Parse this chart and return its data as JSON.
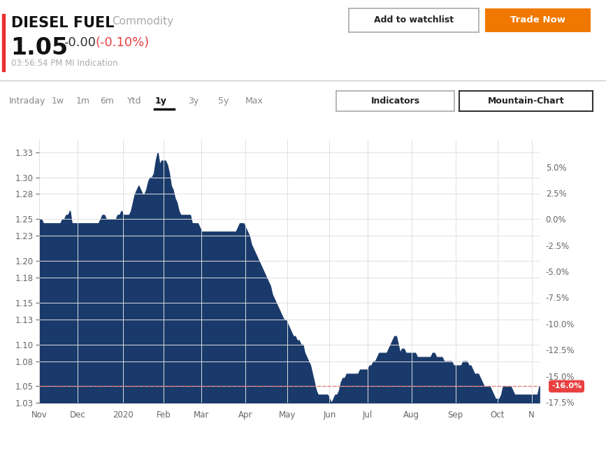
{
  "title": "DIESEL FUEL",
  "subtitle": "Commodity",
  "price": "1.05",
  "change": "-0.00",
  "change_pct": "(-0.10%)",
  "timestamp": "03:56:54 PM MI Indication",
  "bar_color": "#1a3a6b",
  "bg_color": "#ffffff",
  "ref_line_color": "#e87070",
  "ref_line_value": 1.05,
  "ref_line_pct": "-16.0%",
  "ylim_left": [
    1.03,
    1.345
  ],
  "base_price": 1.25,
  "right_pct": [
    0.05,
    0.025,
    0.0,
    -0.025,
    -0.05,
    -0.075,
    -0.1,
    -0.125,
    -0.15,
    -0.175
  ],
  "right_labels": [
    "5.0%",
    "2.5%",
    "0.0%",
    "-2.5%",
    "-5.0%",
    "-7.5%",
    "-10.0%",
    "-12.5%",
    "-15.0%",
    "-17.5%"
  ],
  "x_labels": [
    "Nov",
    "Dec",
    "2020",
    "Feb",
    "Mar",
    "Apr",
    "May",
    "Jun",
    "Jul",
    "Aug",
    "Sep",
    "Oct",
    "N"
  ],
  "x_tick_positions": [
    0,
    20,
    44,
    65,
    85,
    108,
    130,
    152,
    172,
    195,
    218,
    240,
    258
  ],
  "ytick_vals": [
    1.03,
    1.05,
    1.08,
    1.1,
    1.13,
    1.15,
    1.18,
    1.2,
    1.23,
    1.25,
    1.28,
    1.3,
    1.33
  ],
  "tab_labels": [
    "Intraday",
    "1w",
    "1m",
    "6m",
    "Ytd",
    "1y",
    "3y",
    "5y",
    "Max"
  ],
  "tab_x_starts": [
    0.015,
    0.085,
    0.125,
    0.165,
    0.21,
    0.255,
    0.31,
    0.36,
    0.405
  ],
  "active_tab": "1y",
  "grid_color": "#e0e0e0",
  "badge_color": "#e84040",
  "red_bar_color": "#e83030",
  "separator_color": "#cccccc",
  "orange_btn_color": "#f07800",
  "y_values": [
    1.25,
    1.25,
    1.245,
    1.245,
    1.245,
    1.245,
    1.245,
    1.245,
    1.245,
    1.245,
    1.245,
    1.245,
    1.25,
    1.25,
    1.255,
    1.255,
    1.26,
    1.245,
    1.245,
    1.245,
    1.245,
    1.245,
    1.245,
    1.245,
    1.245,
    1.245,
    1.245,
    1.245,
    1.245,
    1.245,
    1.245,
    1.245,
    1.25,
    1.255,
    1.255,
    1.25,
    1.25,
    1.25,
    1.25,
    1.25,
    1.25,
    1.255,
    1.255,
    1.26,
    1.255,
    1.255,
    1.255,
    1.255,
    1.26,
    1.27,
    1.28,
    1.285,
    1.29,
    1.285,
    1.28,
    1.28,
    1.285,
    1.295,
    1.3,
    1.3,
    1.305,
    1.32,
    1.33,
    1.315,
    1.32,
    1.32,
    1.32,
    1.315,
    1.305,
    1.29,
    1.285,
    1.275,
    1.27,
    1.26,
    1.255,
    1.255,
    1.255,
    1.255,
    1.255,
    1.255,
    1.245,
    1.245,
    1.245,
    1.245,
    1.24,
    1.235,
    1.235,
    1.235,
    1.235,
    1.235,
    1.235,
    1.235,
    1.235,
    1.235,
    1.235,
    1.235,
    1.235,
    1.235,
    1.235,
    1.235,
    1.235,
    1.235,
    1.235,
    1.235,
    1.24,
    1.245,
    1.245,
    1.245,
    1.24,
    1.235,
    1.23,
    1.22,
    1.215,
    1.21,
    1.205,
    1.2,
    1.195,
    1.19,
    1.185,
    1.18,
    1.175,
    1.17,
    1.16,
    1.155,
    1.15,
    1.145,
    1.14,
    1.135,
    1.13,
    1.13,
    1.125,
    1.12,
    1.115,
    1.11,
    1.11,
    1.105,
    1.105,
    1.1,
    1.1,
    1.09,
    1.085,
    1.08,
    1.075,
    1.065,
    1.055,
    1.045,
    1.04,
    1.04,
    1.04,
    1.04,
    1.04,
    1.04,
    1.035,
    1.03,
    1.035,
    1.04,
    1.04,
    1.045,
    1.055,
    1.06,
    1.06,
    1.065,
    1.065,
    1.065,
    1.065,
    1.065,
    1.065,
    1.065,
    1.07,
    1.07,
    1.07,
    1.07,
    1.07,
    1.075,
    1.075,
    1.08,
    1.08,
    1.085,
    1.09,
    1.09,
    1.09,
    1.09,
    1.09,
    1.095,
    1.1,
    1.105,
    1.11,
    1.11,
    1.1,
    1.09,
    1.095,
    1.095,
    1.09,
    1.09,
    1.09,
    1.09,
    1.09,
    1.09,
    1.085,
    1.085,
    1.085,
    1.085,
    1.085,
    1.085,
    1.085,
    1.085,
    1.09,
    1.09,
    1.085,
    1.085,
    1.085,
    1.085,
    1.08,
    1.08,
    1.08,
    1.08,
    1.08,
    1.075,
    1.075,
    1.075,
    1.075,
    1.075,
    1.08,
    1.08,
    1.08,
    1.075,
    1.075,
    1.07,
    1.065,
    1.065,
    1.065,
    1.06,
    1.055,
    1.05,
    1.05,
    1.05,
    1.05,
    1.045,
    1.04,
    1.035,
    1.035,
    1.035,
    1.04,
    1.05,
    1.05,
    1.05,
    1.05,
    1.05,
    1.045,
    1.04,
    1.04,
    1.04,
    1.04,
    1.04,
    1.04,
    1.04,
    1.04,
    1.04,
    1.04,
    1.04,
    1.04,
    1.04,
    1.05
  ]
}
